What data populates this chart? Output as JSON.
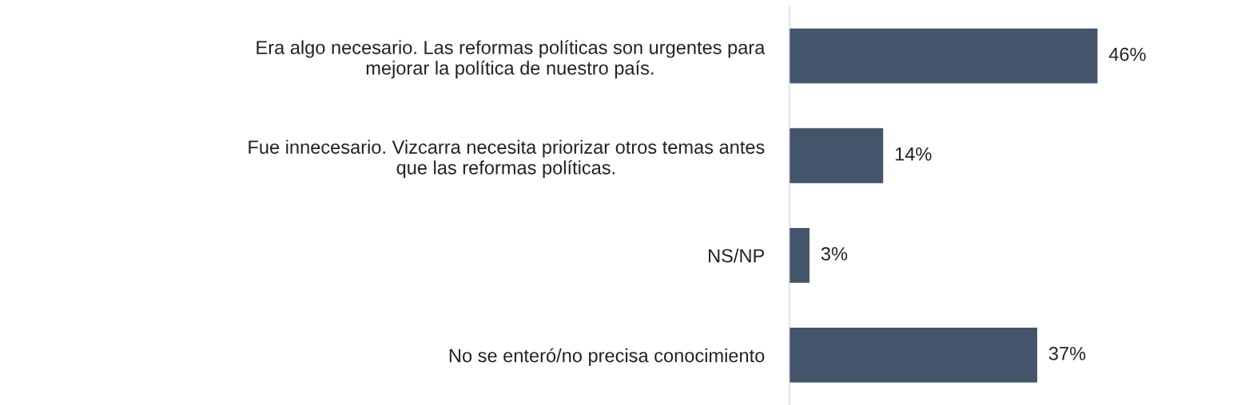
{
  "chart_data": {
    "type": "bar",
    "orientation": "horizontal",
    "categories": [
      "Era algo necesario. Las reformas políticas son urgentes para\nmejorar la política de nuestro país.",
      "Fue innecesario. Vizcarra necesita priorizar otros temas antes\nque las reformas políticas.",
      "NS/NP",
      "No se enteró/no precisa conocimiento"
    ],
    "values": [
      46,
      14,
      3,
      37
    ],
    "value_labels": [
      "46%",
      "14%",
      "3%",
      "37%"
    ],
    "color": "#44546a",
    "grid": false,
    "legend": false
  }
}
